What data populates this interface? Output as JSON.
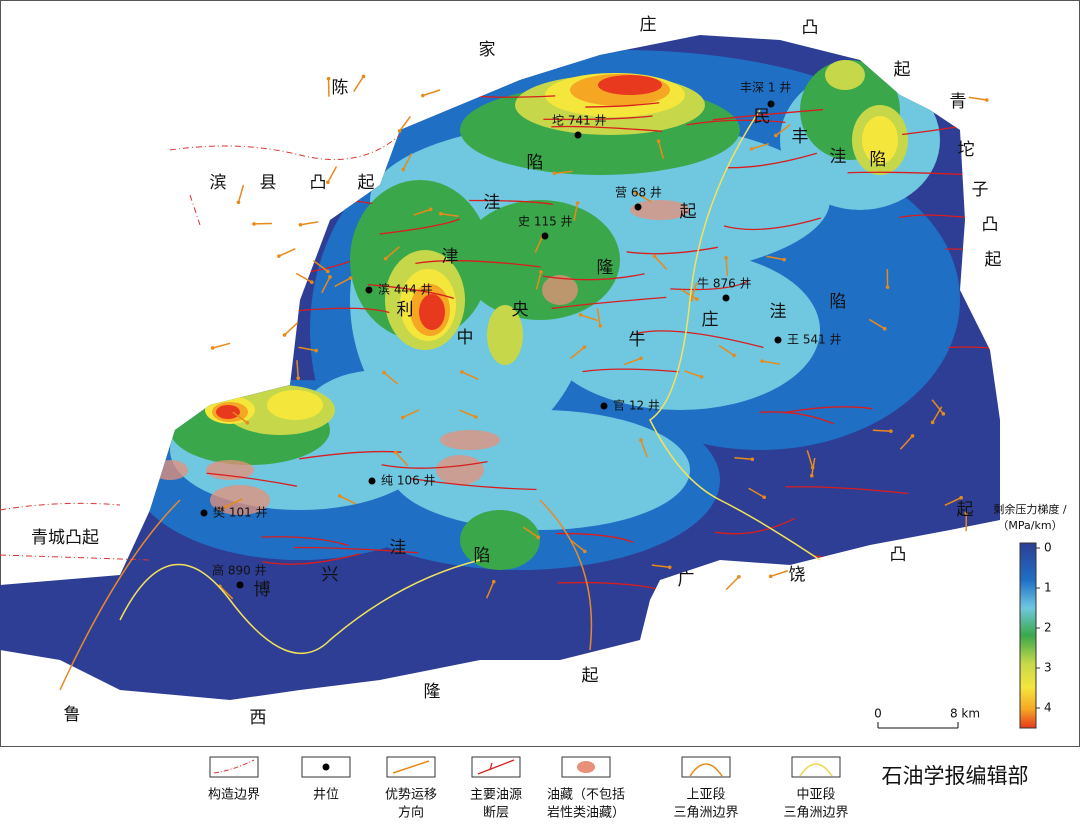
{
  "structures": {
    "chenjiazhuang_uplift": [
      "陈",
      "家",
      "庄",
      "凸",
      "起"
    ],
    "binxian_uplift": [
      "滨",
      "县",
      "凸",
      "起"
    ],
    "qingtuozi_uplift": [
      "青",
      "坨",
      "子",
      "凸",
      "起"
    ],
    "qingcheng_uplift": [
      "青城凸起"
    ],
    "lijin_sag": [
      "利",
      "津",
      "洼",
      "陷"
    ],
    "central_uplift": [
      "中",
      "央",
      "隆",
      "起"
    ],
    "niuzhuang_sag": [
      "牛",
      "庄",
      "洼",
      "陷"
    ],
    "minfeng_sag": [
      "民",
      "丰",
      "洼",
      "陷"
    ],
    "boxing_sag": [
      "博",
      "兴",
      "洼",
      "陷"
    ],
    "guangrao_uplift": [
      "广",
      "饶",
      "凸",
      "起"
    ],
    "luxi_uplift": [
      "鲁",
      "西",
      "隆",
      "起"
    ]
  },
  "wells": [
    "丰深 1 井",
    "坨 741 井",
    "营 68 井",
    "史 115 井",
    "滨 444 井",
    "牛 876 井",
    "王 541 井",
    "官 12 井",
    "纯 106 井",
    "樊 101 井",
    "高 890 井"
  ],
  "colorbar": {
    "title": [
      "剩余压力梯度 /",
      "（MPa/km）"
    ],
    "ticks": [
      0,
      1,
      2,
      3,
      4
    ]
  },
  "scale_bar": {
    "start": "0",
    "end": "8 km"
  },
  "legend": [
    {
      "label": [
        "构造边界"
      ]
    },
    {
      "label": [
        "井位"
      ]
    },
    {
      "label": [
        "优势运移",
        "方向"
      ]
    },
    {
      "label": [
        "主要油源",
        "断层"
      ]
    },
    {
      "label": [
        "油藏（不包括",
        "岩性类油藏）"
      ]
    },
    {
      "label": [
        "上亚段",
        "三角洲边界"
      ]
    },
    {
      "label": [
        "中亚段",
        "三角洲边界"
      ]
    }
  ],
  "watermark": "石油学报编辑部"
}
